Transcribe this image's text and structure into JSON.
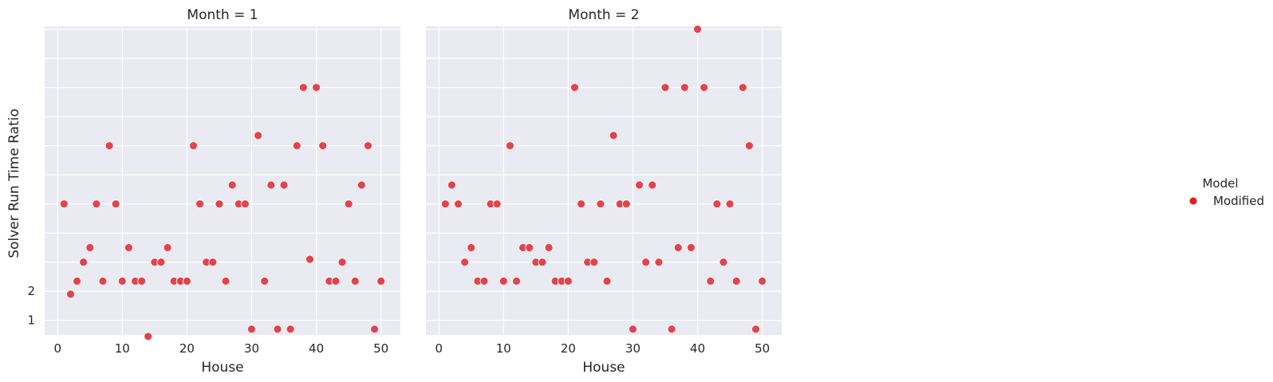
{
  "chart_data": {
    "type": "scatter",
    "ylabel": "Solver Run Time Ratio",
    "xlabel": "House",
    "xticks": [
      0,
      10,
      20,
      30,
      40,
      50
    ],
    "yticks": [
      1,
      2
    ],
    "xlim": [
      -2,
      53
    ],
    "ylim": [
      0.5,
      11.1
    ],
    "grid": true,
    "legend": {
      "title": "Model",
      "placement": "right",
      "entries": [
        {
          "name": "Modified",
          "color": "#e41a1c"
        }
      ]
    },
    "marker_color": "#e3434b",
    "panels": [
      {
        "title": "Month = 1",
        "points": [
          [
            1,
            5.0
          ],
          [
            2,
            1.9
          ],
          [
            3,
            2.35
          ],
          [
            4,
            3.0
          ],
          [
            5,
            3.5
          ],
          [
            6,
            5.0
          ],
          [
            7,
            2.35
          ],
          [
            8,
            7.0
          ],
          [
            9,
            5.0
          ],
          [
            10,
            2.35
          ],
          [
            11,
            3.5
          ],
          [
            12,
            2.35
          ],
          [
            13,
            2.35
          ],
          [
            14,
            0.45
          ],
          [
            15,
            3.0
          ],
          [
            16,
            3.0
          ],
          [
            17,
            3.5
          ],
          [
            18,
            2.35
          ],
          [
            19,
            2.35
          ],
          [
            20,
            2.35
          ],
          [
            21,
            7.0
          ],
          [
            22,
            5.0
          ],
          [
            23,
            3.0
          ],
          [
            24,
            3.0
          ],
          [
            25,
            5.0
          ],
          [
            26,
            2.35
          ],
          [
            27,
            5.65
          ],
          [
            28,
            5.0
          ],
          [
            29,
            5.0
          ],
          [
            30,
            0.7
          ],
          [
            31,
            7.35
          ],
          [
            32,
            2.35
          ],
          [
            33,
            5.65
          ],
          [
            34,
            0.7
          ],
          [
            35,
            5.65
          ],
          [
            36,
            0.7
          ],
          [
            37,
            7.0
          ],
          [
            38,
            9.0
          ],
          [
            39,
            3.1
          ],
          [
            40,
            9.0
          ],
          [
            41,
            7.0
          ],
          [
            42,
            2.35
          ],
          [
            43,
            2.35
          ],
          [
            44,
            3.0
          ],
          [
            45,
            5.0
          ],
          [
            46,
            2.35
          ],
          [
            47,
            5.65
          ],
          [
            48,
            7.0
          ],
          [
            49,
            0.7
          ],
          [
            50,
            2.35
          ]
        ]
      },
      {
        "title": "Month = 2",
        "points": [
          [
            1,
            5.0
          ],
          [
            2,
            5.65
          ],
          [
            3,
            5.0
          ],
          [
            4,
            3.0
          ],
          [
            5,
            3.5
          ],
          [
            6,
            2.35
          ],
          [
            7,
            2.35
          ],
          [
            8,
            5.0
          ],
          [
            9,
            5.0
          ],
          [
            10,
            2.35
          ],
          [
            11,
            7.0
          ],
          [
            12,
            2.35
          ],
          [
            13,
            3.5
          ],
          [
            14,
            3.5
          ],
          [
            15,
            3.0
          ],
          [
            16,
            3.0
          ],
          [
            17,
            3.5
          ],
          [
            18,
            2.35
          ],
          [
            19,
            2.35
          ],
          [
            20,
            2.35
          ],
          [
            21,
            9.0
          ],
          [
            22,
            5.0
          ],
          [
            23,
            3.0
          ],
          [
            24,
            3.0
          ],
          [
            25,
            5.0
          ],
          [
            26,
            2.35
          ],
          [
            27,
            7.35
          ],
          [
            28,
            5.0
          ],
          [
            29,
            5.0
          ],
          [
            30,
            0.7
          ],
          [
            31,
            5.65
          ],
          [
            32,
            3.0
          ],
          [
            33,
            5.65
          ],
          [
            34,
            3.0
          ],
          [
            35,
            9.0
          ],
          [
            36,
            0.7
          ],
          [
            37,
            3.5
          ],
          [
            38,
            9.0
          ],
          [
            39,
            3.5
          ],
          [
            40,
            11.0
          ],
          [
            41,
            9.0
          ],
          [
            42,
            2.35
          ],
          [
            43,
            5.0
          ],
          [
            44,
            3.0
          ],
          [
            45,
            5.0
          ],
          [
            46,
            2.35
          ],
          [
            47,
            9.0
          ],
          [
            48,
            7.0
          ],
          [
            49,
            0.7
          ],
          [
            50,
            2.35
          ]
        ]
      }
    ]
  }
}
